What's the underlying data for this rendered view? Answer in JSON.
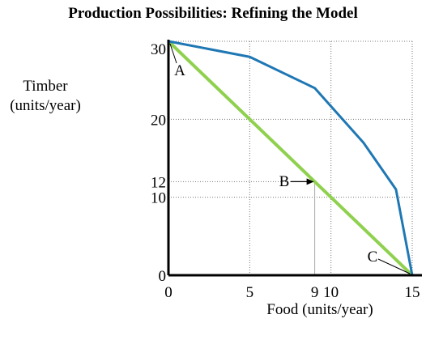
{
  "chart_data": {
    "type": "line",
    "title": "Production Possibilities: Refining the Model",
    "xlabel": "Food (units/year)",
    "ylabel_line1": "Timber",
    "ylabel_line2": "(units/year)",
    "xlim": [
      0,
      15
    ],
    "ylim": [
      0,
      30
    ],
    "grid": true,
    "x_ticks": [
      0,
      5,
      9,
      10,
      15
    ],
    "y_ticks": [
      0,
      10,
      12,
      20,
      30
    ],
    "series": [
      {
        "color": "#1f77b4",
        "x": [
          0,
          5,
          9,
          12,
          14,
          15
        ],
        "y": [
          30,
          28,
          24,
          17,
          11,
          0
        ]
      },
      {
        "color": "#8fd14f",
        "x": [
          0,
          15
        ],
        "y": [
          30,
          0
        ]
      }
    ],
    "guide_point": {
      "x": 9,
      "y": 12
    },
    "annotations": [
      {
        "label": "A",
        "x": 0,
        "y": 30
      },
      {
        "label": "B",
        "x": 9,
        "y": 12
      },
      {
        "label": "C",
        "x": 15,
        "y": 0
      }
    ]
  }
}
